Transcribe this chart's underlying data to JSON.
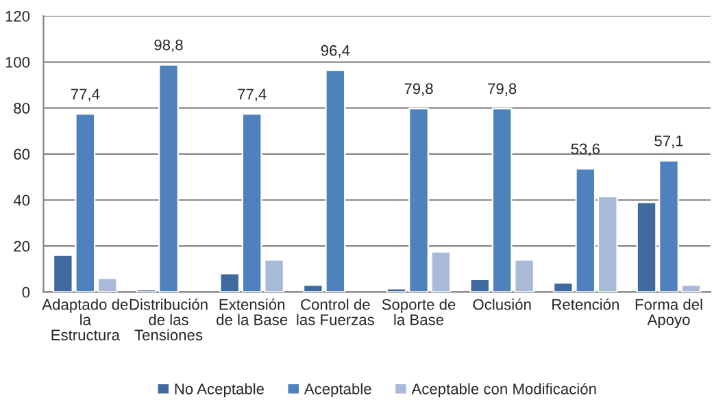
{
  "chart_data": {
    "type": "bar",
    "categories": [
      "Adaptado de la Estructura",
      "Distribución de las Tensiones",
      "Extensión de la Base",
      "Control de las Fuerzas",
      "Soporte de la Base",
      "Oclusión",
      "Retención",
      "Forma del Apoyo"
    ],
    "series": [
      {
        "name": "No Aceptable",
        "color": "#3f6a9e",
        "values": [
          16,
          1,
          8,
          3,
          1.5,
          5.5,
          4,
          39
        ]
      },
      {
        "name": "Aceptable",
        "color": "#4f81bd",
        "values": [
          77.4,
          98.8,
          77.4,
          96.4,
          79.8,
          79.8,
          53.6,
          57.1
        ],
        "value_labels": [
          "77,4",
          "98,8",
          "77,4",
          "96,4",
          "79,8",
          "79,8",
          "53,6",
          "57,1"
        ]
      },
      {
        "name": "Aceptable con Modificación",
        "color": "#a9bad8",
        "values": [
          6,
          null,
          14,
          null,
          17.5,
          14,
          41.5,
          3
        ]
      }
    ],
    "ylim": [
      0,
      120
    ],
    "yticks": [
      0,
      20,
      40,
      60,
      80,
      100,
      120
    ],
    "grid": "y",
    "legend": "bottom"
  }
}
